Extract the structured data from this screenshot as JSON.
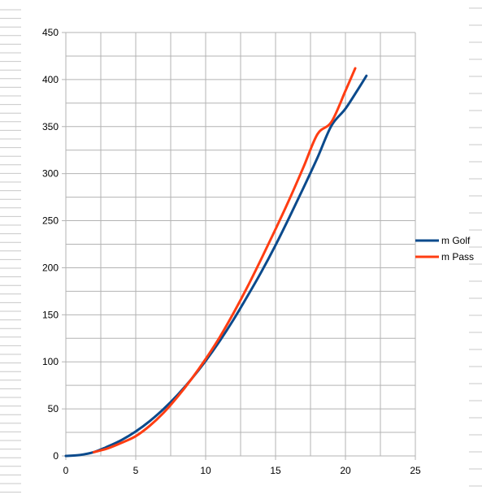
{
  "chart_data": {
    "type": "line",
    "title": "",
    "xlabel": "",
    "ylabel": "",
    "xlim": [
      0,
      25
    ],
    "ylim": [
      0,
      450
    ],
    "x_ticks": [
      0,
      5,
      10,
      15,
      20,
      25
    ],
    "y_ticks": [
      0,
      50,
      100,
      150,
      200,
      250,
      300,
      350,
      400,
      450
    ],
    "grid": true,
    "legend_position": "right",
    "series": [
      {
        "name": "m Golf",
        "color": "#0b4a8c",
        "points": [
          [
            0,
            0
          ],
          [
            1,
            1
          ],
          [
            2,
            4
          ],
          [
            3,
            10
          ],
          [
            4,
            17
          ],
          [
            5,
            26
          ],
          [
            6,
            37
          ],
          [
            7,
            50
          ],
          [
            8,
            65
          ],
          [
            9,
            82
          ],
          [
            10,
            101
          ],
          [
            11,
            122
          ],
          [
            12,
            145
          ],
          [
            13,
            170
          ],
          [
            14,
            196
          ],
          [
            15,
            224
          ],
          [
            16,
            254
          ],
          [
            17,
            285
          ],
          [
            18,
            317
          ],
          [
            19,
            351
          ],
          [
            20,
            369
          ],
          [
            21,
            392
          ],
          [
            21.5,
            404
          ]
        ]
      },
      {
        "name": "m Pass",
        "color": "#ff3d12",
        "points": [
          [
            2,
            4
          ],
          [
            3,
            8
          ],
          [
            4,
            14
          ],
          [
            5,
            21
          ],
          [
            6,
            32
          ],
          [
            7,
            46
          ],
          [
            8,
            63
          ],
          [
            9,
            82
          ],
          [
            10,
            103
          ],
          [
            11,
            126
          ],
          [
            12,
            152
          ],
          [
            13,
            180
          ],
          [
            14,
            210
          ],
          [
            15,
            241
          ],
          [
            16,
            273
          ],
          [
            17,
            307
          ],
          [
            18,
            342
          ],
          [
            19,
            355
          ],
          [
            20,
            388
          ],
          [
            20.7,
            412
          ]
        ]
      }
    ]
  }
}
